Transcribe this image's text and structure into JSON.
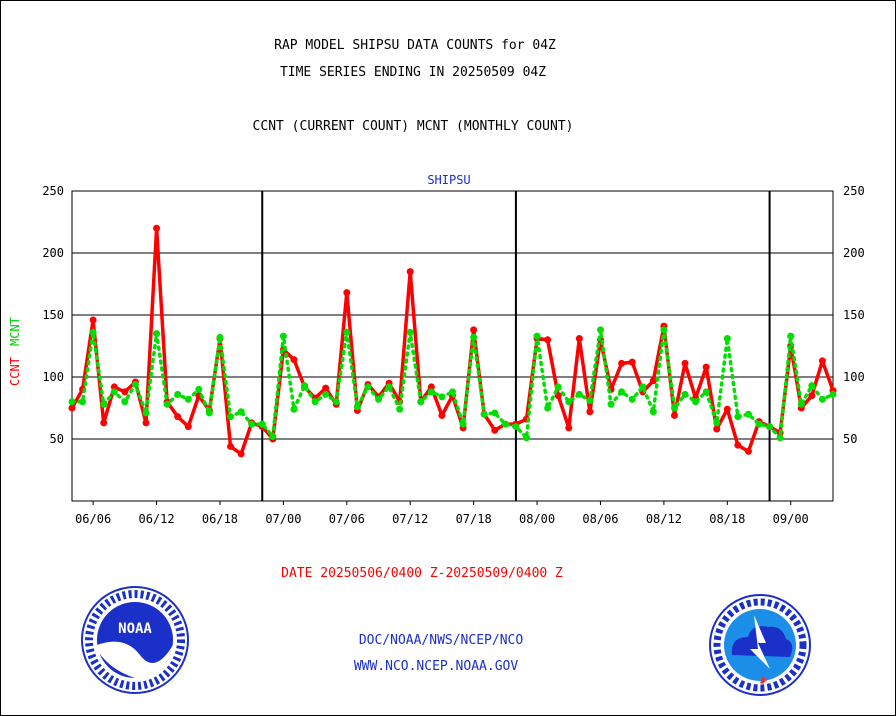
{
  "header": {
    "title_line1": "RAP MODEL SHIPSU DATA COUNTS for 04Z",
    "title_line2": "TIME SERIES ENDING IN 20250509 04Z",
    "subtitle": "CCNT (CURRENT COUNT) MCNT (MONTHLY COUNT)"
  },
  "footer": {
    "date_range": "DATE 20250506/0400 Z-20250509/0400 Z",
    "credit_line1": "DOC/NOAA/NWS/NCEP/NCO",
    "credit_line2": "WWW.NCO.NCEP.NOAA.GOV"
  },
  "logos": {
    "left": "noaa-logo",
    "right": "national-weather-service-logo"
  },
  "colors": {
    "ccnt": "#ff0000",
    "mcnt": "#00e000",
    "title": "#000000",
    "plot_label": "#1b2fc9",
    "date_range": "#ff0000"
  },
  "chart_data": {
    "type": "line",
    "title": "SHIPSU",
    "ylabel_parts": [
      "CCNT",
      "MCNT"
    ],
    "ylim": [
      0,
      250
    ],
    "y_ticks": [
      50,
      100,
      150,
      200,
      250
    ],
    "x_tick_labels": [
      "06/06",
      "06/12",
      "06/18",
      "07/00",
      "07/06",
      "07/12",
      "07/18",
      "08/00",
      "08/06",
      "08/12",
      "08/18",
      "09/00"
    ],
    "x_range_hours": [
      0,
      72
    ],
    "day_boundaries_hours": [
      18,
      42,
      66
    ],
    "grid": true,
    "series": [
      {
        "name": "CCNT",
        "color": "#ff0000",
        "x": [
          0,
          1,
          2,
          3,
          4,
          5,
          6,
          7,
          8,
          9,
          10,
          11,
          12,
          13,
          14,
          15,
          16,
          17,
          18,
          19,
          20,
          21,
          22,
          23,
          24,
          25,
          26,
          27,
          28,
          29,
          30,
          31,
          32,
          33,
          34,
          35,
          36,
          37,
          38,
          39,
          40,
          41,
          42,
          43,
          44,
          45,
          46,
          47,
          48,
          49,
          50,
          51,
          52,
          53,
          54,
          55,
          56,
          57,
          58,
          59,
          60,
          61,
          62,
          63,
          64,
          65,
          66,
          67,
          68,
          69,
          70,
          71,
          72
        ],
        "values": [
          75,
          90,
          146,
          63,
          92,
          88,
          96,
          63,
          220,
          80,
          68,
          60,
          85,
          73,
          131,
          44,
          38,
          63,
          60,
          50,
          122,
          114,
          92,
          83,
          91,
          78,
          168,
          73,
          94,
          84,
          95,
          80,
          185,
          80,
          92,
          69,
          85,
          59,
          138,
          70,
          57,
          62,
          62,
          66,
          131,
          130,
          85,
          59,
          131,
          72,
          130,
          90,
          111,
          112,
          88,
          97,
          141,
          69,
          111,
          83,
          108,
          58,
          74,
          45,
          40,
          64,
          60,
          55,
          125,
          75,
          85,
          113,
          89
        ]
      },
      {
        "name": "MCNT",
        "color": "#00e000",
        "x": [
          0,
          1,
          2,
          3,
          4,
          5,
          6,
          7,
          8,
          9,
          10,
          11,
          12,
          13,
          14,
          15,
          16,
          17,
          18,
          19,
          20,
          21,
          22,
          23,
          24,
          25,
          26,
          27,
          28,
          29,
          30,
          31,
          32,
          33,
          34,
          35,
          36,
          37,
          38,
          39,
          40,
          41,
          42,
          43,
          44,
          45,
          46,
          47,
          48,
          49,
          50,
          51,
          52,
          53,
          54,
          55,
          56,
          57,
          58,
          59,
          60,
          61,
          62,
          63,
          64,
          65,
          66,
          67,
          68,
          69,
          70,
          71,
          72
        ],
        "values": [
          80,
          80,
          136,
          78,
          88,
          80,
          94,
          71,
          135,
          78,
          86,
          82,
          90,
          71,
          132,
          68,
          72,
          62,
          62,
          52,
          133,
          74,
          93,
          80,
          86,
          80,
          136,
          76,
          92,
          82,
          92,
          74,
          136,
          80,
          88,
          84,
          88,
          62,
          132,
          70,
          71,
          62,
          60,
          51,
          133,
          75,
          92,
          80,
          86,
          81,
          138,
          78,
          88,
          82,
          92,
          72,
          138,
          75,
          86,
          80,
          88,
          63,
          131,
          68,
          70,
          62,
          60,
          51,
          133,
          78,
          93,
          82,
          86
        ]
      }
    ]
  }
}
